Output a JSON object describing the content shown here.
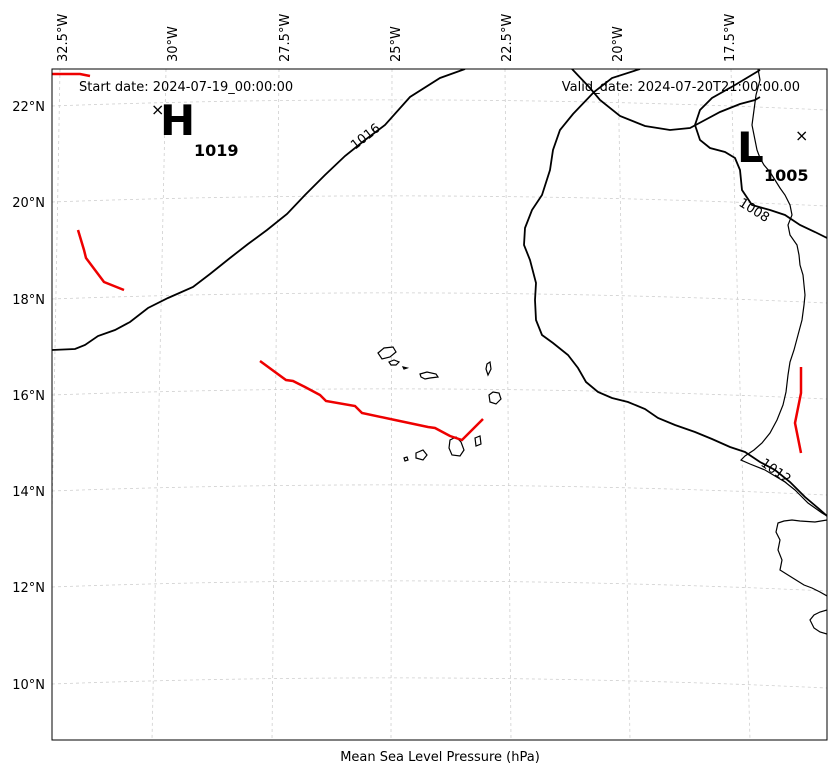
{
  "map": {
    "start_date_text": "Start date: 2024-07-19_00:00:00",
    "valid_date_text": "Valid_date: 2024-07-20T21:00:00.00",
    "footer_label": "Mean Sea Level Pressure (hPa)",
    "longitude_ticks": [
      "32.5°W",
      "30°W",
      "27.5°W",
      "25°W",
      "22.5°W",
      "20°W",
      "17.5°W"
    ],
    "latitude_ticks": [
      "22°N",
      "20°N",
      "18°N",
      "16°N",
      "14°N",
      "12°N",
      "10°N"
    ],
    "isobar_labels": [
      "1016",
      "1008",
      "1012"
    ],
    "high_center": {
      "letter": "H",
      "value": "1019"
    },
    "low_center": {
      "letter": "L",
      "value": "1005"
    },
    "center_marker_symbol": "×",
    "colors": {
      "isobar": "#000000",
      "front": "#ee0000",
      "grid": "#cfcfcf",
      "coastline": "#000000"
    }
  }
}
